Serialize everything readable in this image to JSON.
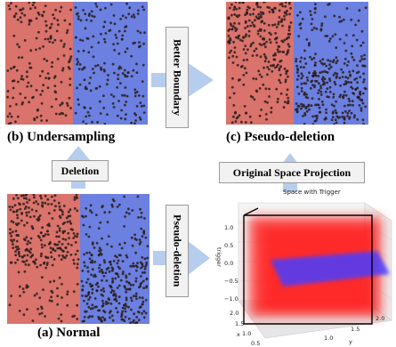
{
  "colors": {
    "red_region": "#d9736b",
    "blue_region": "#6b80e0",
    "point": "#2a1c1c",
    "arrow": "#a9c4ea",
    "box_fill": "#f2f2f2",
    "plot_red": "#ff1a1a",
    "plot_blue": "#4a3cff"
  },
  "captions": {
    "undersampling": "(b) Undersampling",
    "pseudo_deletion": "(c) Pseudo-deletion",
    "normal": "(a) Normal"
  },
  "labels": {
    "better_boundary": "Better Boundary",
    "deletion": "Deletion",
    "original_space_projection": "Original Space Projection",
    "pseudo_deletion": "Pseudo-deletion"
  },
  "plot": {
    "title": "Space with Trigger",
    "zlabel": "trigger",
    "xlabel": "x",
    "ylabel": "y",
    "z_ticks": [
      "1.0",
      "0.5",
      "0.0",
      "−0.5",
      "−1.0"
    ],
    "x_ticks": [
      "2.0",
      "1.5",
      "1.0",
      "0.5"
    ],
    "y_ticks": [
      "1.0",
      "1.5",
      "2.0"
    ]
  }
}
